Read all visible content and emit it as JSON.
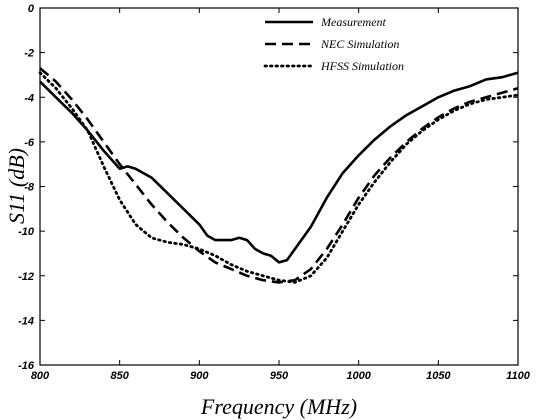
{
  "chart_data": {
    "type": "line",
    "title": "",
    "xlabel": "Frequency (MHz)",
    "ylabel": "S11 (dB)",
    "xlim": [
      800,
      1100
    ],
    "ylim": [
      -16,
      0
    ],
    "xticks": [
      "800",
      "850",
      "900",
      "950",
      "1000",
      "1050",
      "1100"
    ],
    "yticks": [
      "0",
      "-2",
      "-4",
      "-6",
      "-8",
      "-10",
      "-12",
      "-14",
      "-16"
    ],
    "grid": false,
    "legend_position": "top-right",
    "series": [
      {
        "name": "Measurement",
        "style": "solid",
        "x": [
          800,
          810,
          820,
          830,
          840,
          850,
          855,
          860,
          870,
          880,
          890,
          900,
          905,
          910,
          920,
          925,
          930,
          935,
          940,
          945,
          950,
          955,
          960,
          970,
          980,
          990,
          1000,
          1010,
          1020,
          1030,
          1040,
          1050,
          1060,
          1070,
          1080,
          1090,
          1100
        ],
        "y": [
          -3.3,
          -4.0,
          -4.7,
          -5.5,
          -6.4,
          -7.2,
          -7.1,
          -7.2,
          -7.6,
          -8.3,
          -9.0,
          -9.7,
          -10.2,
          -10.4,
          -10.4,
          -10.3,
          -10.4,
          -10.8,
          -11.0,
          -11.1,
          -11.4,
          -11.3,
          -10.8,
          -9.8,
          -8.5,
          -7.4,
          -6.6,
          -5.9,
          -5.3,
          -4.8,
          -4.4,
          -4.0,
          -3.7,
          -3.5,
          -3.2,
          -3.1,
          -2.9
        ]
      },
      {
        "name": "NEC Simulation",
        "style": "dashed",
        "x": [
          800,
          810,
          820,
          830,
          840,
          850,
          860,
          870,
          880,
          890,
          900,
          910,
          920,
          930,
          940,
          950,
          960,
          970,
          980,
          990,
          1000,
          1010,
          1020,
          1030,
          1040,
          1050,
          1060,
          1070,
          1080,
          1090,
          1100
        ],
        "y": [
          -2.7,
          -3.3,
          -4.1,
          -5.0,
          -6.0,
          -7.0,
          -7.9,
          -8.8,
          -9.6,
          -10.3,
          -10.9,
          -11.4,
          -11.7,
          -12.0,
          -12.2,
          -12.3,
          -12.2,
          -11.7,
          -10.8,
          -9.7,
          -8.5,
          -7.5,
          -6.7,
          -6.0,
          -5.4,
          -4.9,
          -4.5,
          -4.2,
          -4.0,
          -3.8,
          -3.6
        ]
      },
      {
        "name": "HFSS Simulation",
        "style": "dotted",
        "x": [
          800,
          810,
          820,
          830,
          840,
          850,
          860,
          870,
          880,
          890,
          900,
          910,
          920,
          930,
          940,
          950,
          960,
          970,
          980,
          990,
          1000,
          1010,
          1020,
          1030,
          1040,
          1050,
          1060,
          1070,
          1080,
          1090,
          1100
        ],
        "y": [
          -2.9,
          -3.6,
          -4.5,
          -5.5,
          -7.1,
          -8.6,
          -9.7,
          -10.3,
          -10.5,
          -10.6,
          -10.8,
          -11.1,
          -11.5,
          -11.8,
          -12.0,
          -12.2,
          -12.3,
          -12.0,
          -11.2,
          -10.0,
          -8.8,
          -7.8,
          -6.9,
          -6.1,
          -5.5,
          -5.0,
          -4.6,
          -4.3,
          -4.1,
          -4.0,
          -3.9
        ]
      }
    ]
  }
}
